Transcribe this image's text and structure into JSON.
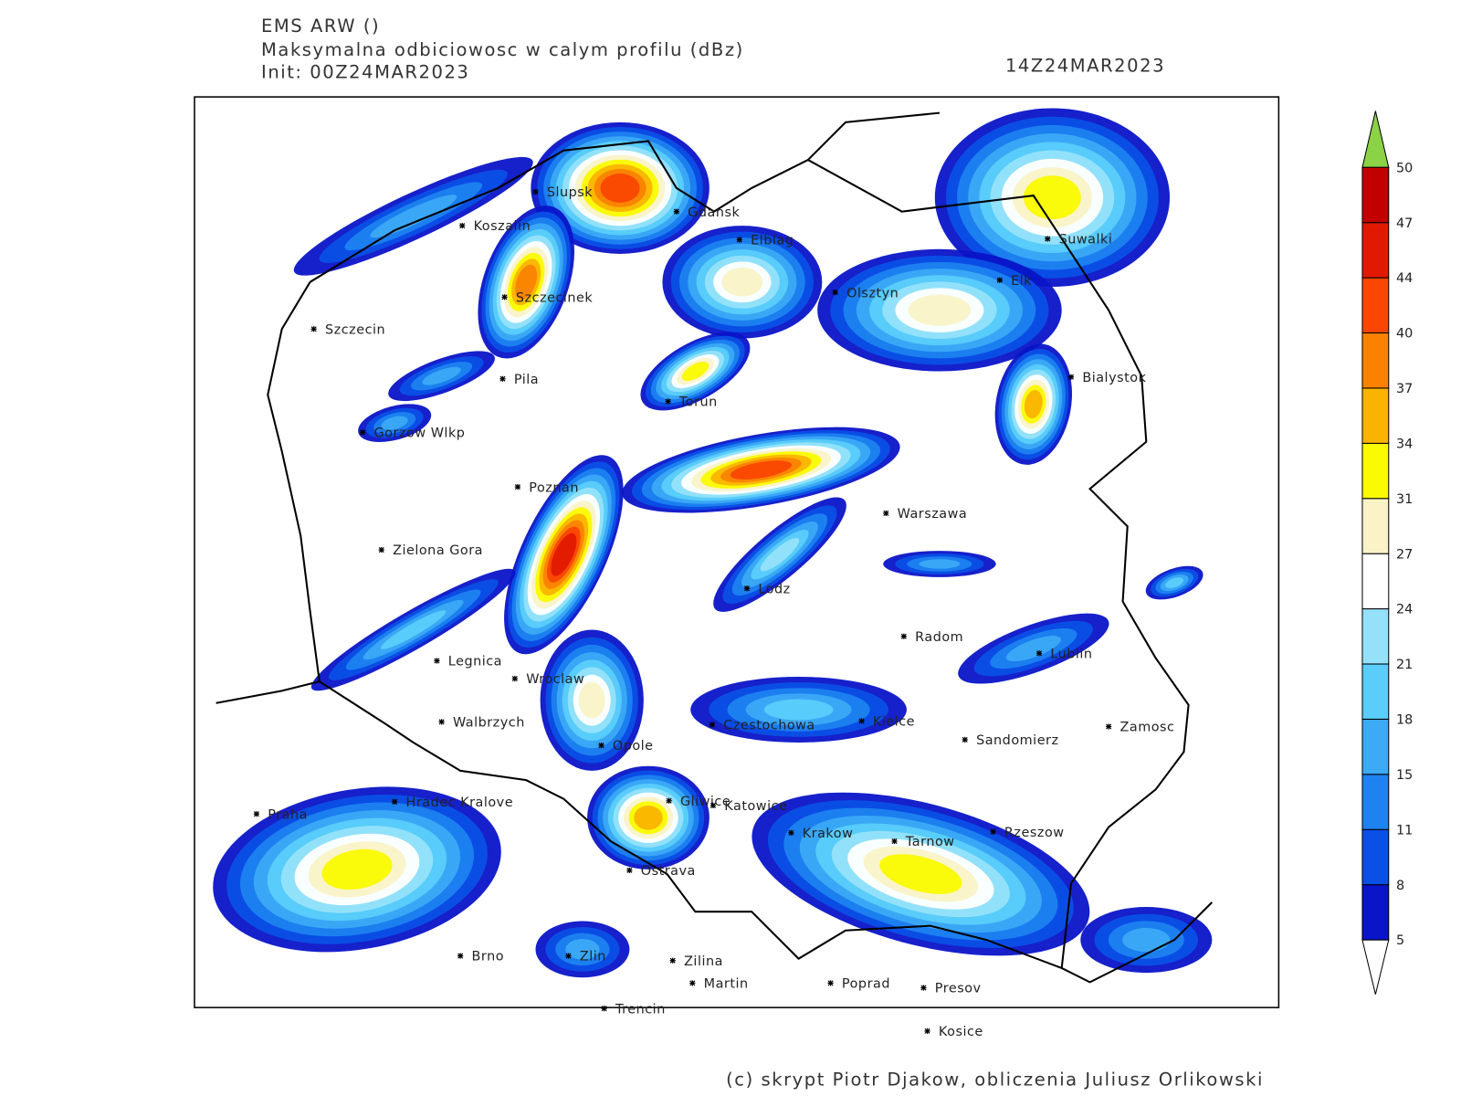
{
  "header": {
    "model": "EMS ARW ()",
    "field": "Maksymalna odbiciowosc w calym profilu (dBz)",
    "init": "Init: 00Z24MAR2023",
    "valid": "14Z24MAR2023"
  },
  "cities": [
    "Slupsk",
    "Koszalin",
    "Gdansk",
    "Elblag",
    "Suwalki",
    "Elk",
    "Olsztyn",
    "Szczecinek",
    "Szczecin",
    "Pila",
    "Bialystok",
    "Torun",
    "Gorzow Wlkp",
    "Poznan",
    "Warszawa",
    "Zielona Gora",
    "Lodz",
    "Radom",
    "Lublin",
    "Legnica",
    "Wroclaw",
    "Walbrzych",
    "Czestochowa",
    "Kielce",
    "Zamosc",
    "Sandomierz",
    "Opole",
    "Hradec Kralove",
    "Gliwice",
    "Katowice",
    "Praha",
    "Krakow",
    "Rzeszow",
    "Tarnow",
    "Ostrava",
    "Brno",
    "Zlin",
    "Zilina",
    "Martin",
    "Poprad",
    "Presov",
    "Trencin",
    "Kosice"
  ],
  "colorbar": {
    "ticks": [
      5,
      8,
      11,
      15,
      18,
      21,
      24,
      27,
      31,
      34,
      37,
      40,
      44,
      47,
      50
    ],
    "colors": [
      "#0a14c8",
      "#0a50e6",
      "#1e82f0",
      "#3caaf5",
      "#5acdfa",
      "#96e1fa",
      "#ffffff",
      "#faf3c8",
      "#fafa00",
      "#fab400",
      "#fa8200",
      "#fa4600",
      "#e11900",
      "#c30000"
    ]
  },
  "footer": "(c) skrypt Piotr Djakow, obliczenia Juliusz Orlikowski"
}
